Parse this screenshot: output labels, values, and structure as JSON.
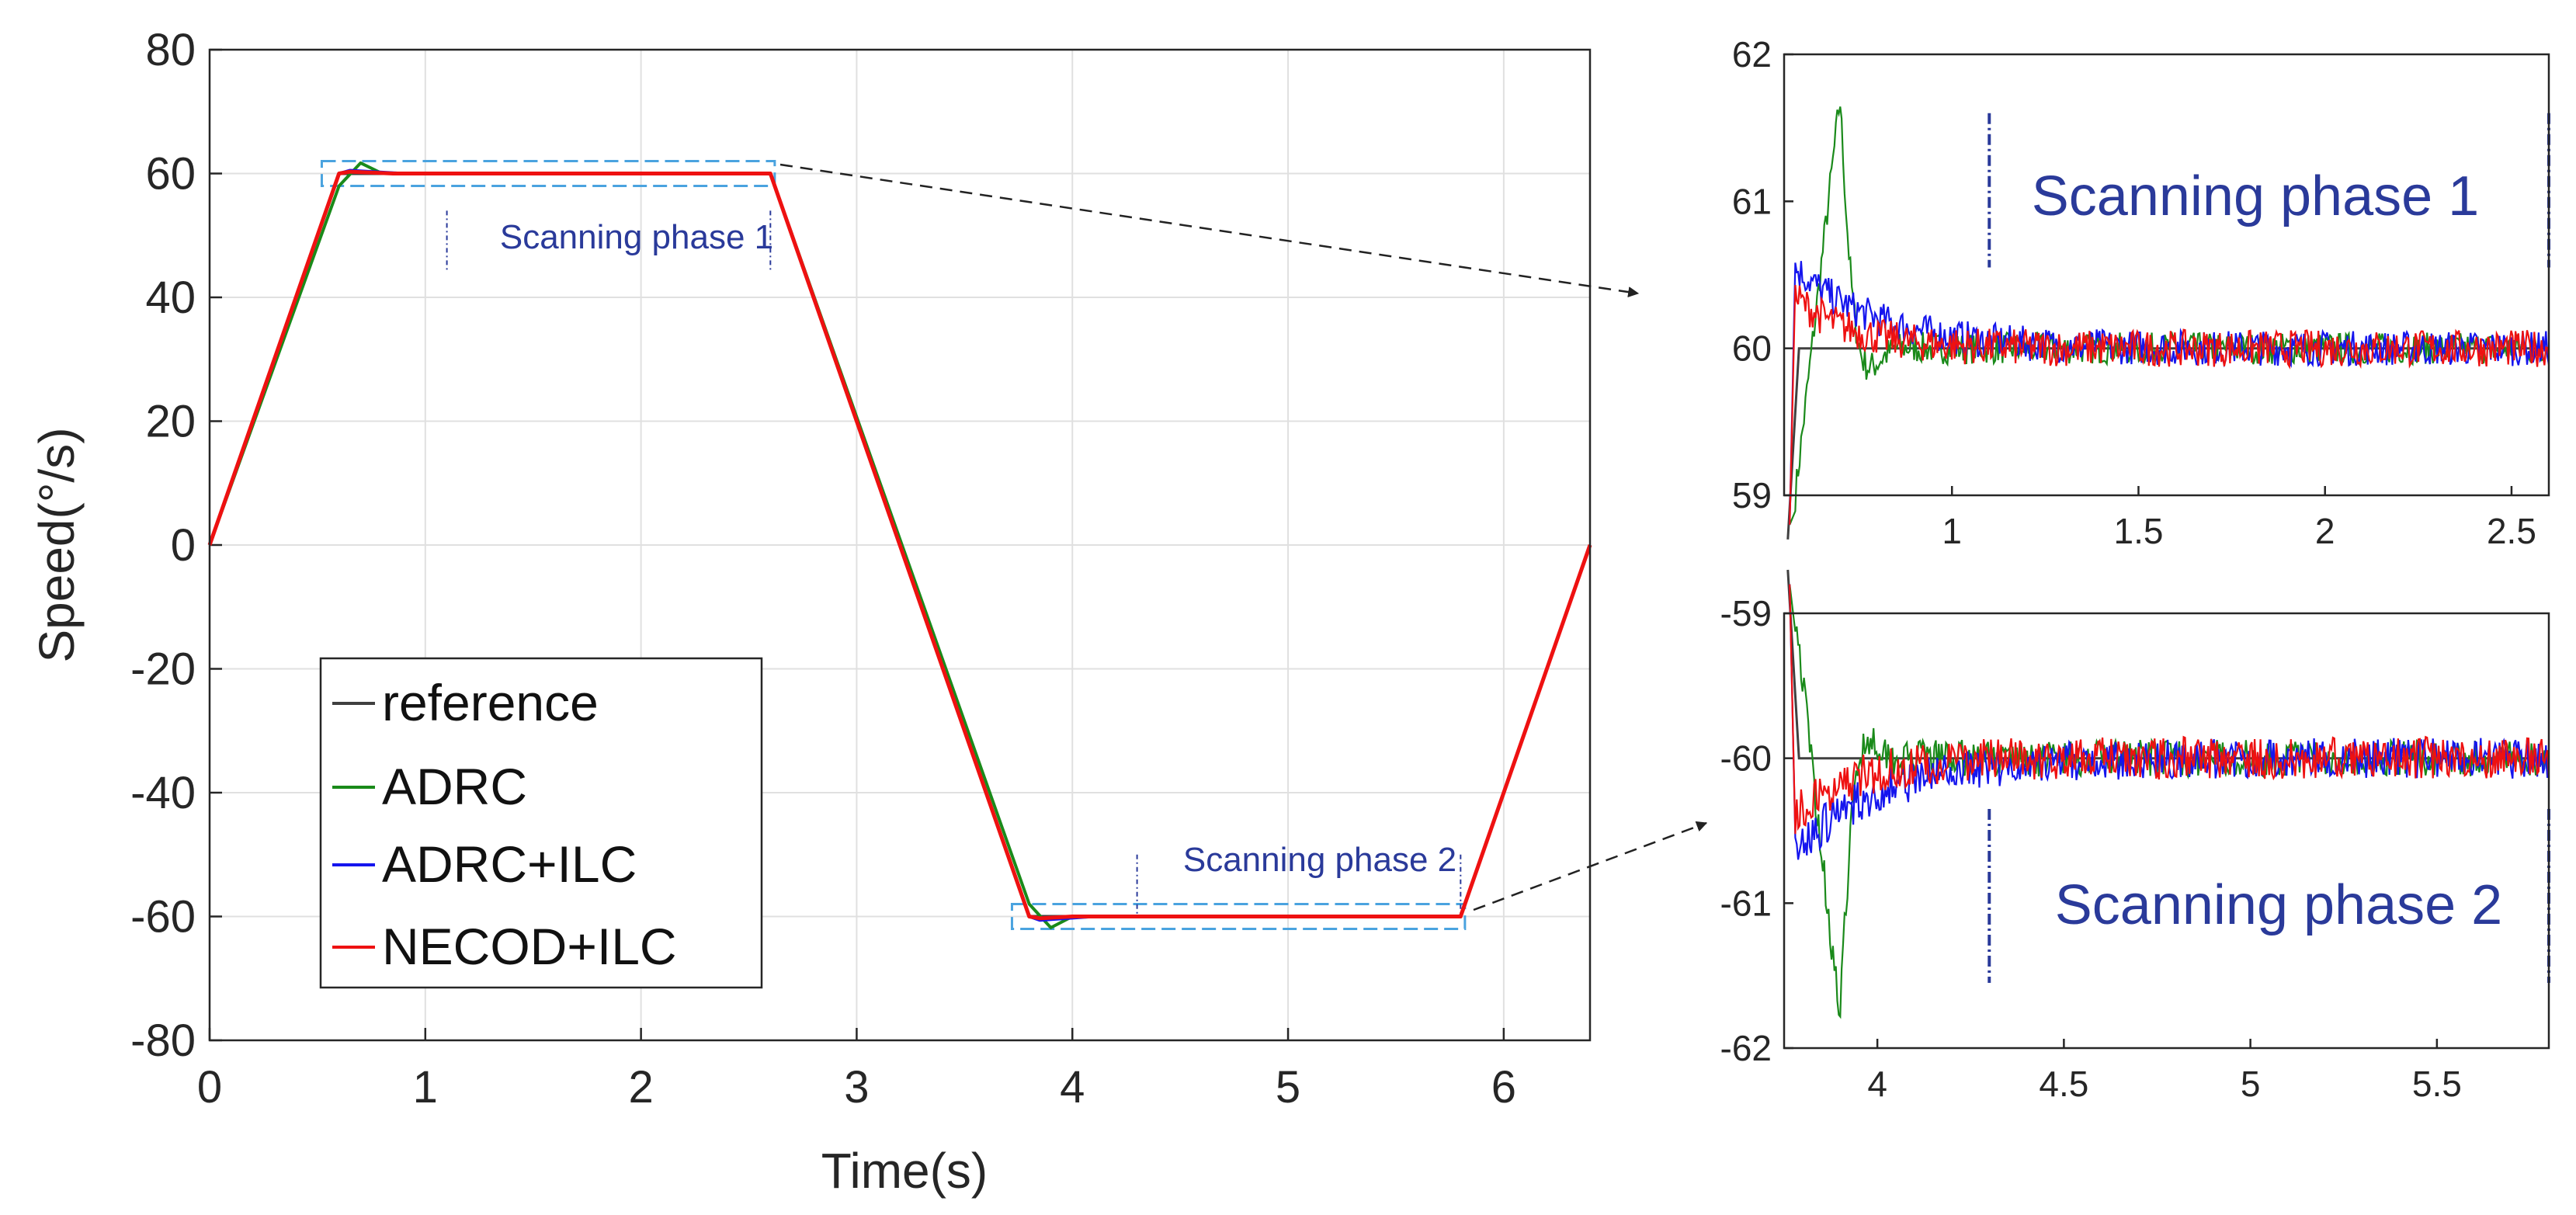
{
  "chart_data": [
    {
      "id": "main",
      "type": "line",
      "title": "",
      "xlabel": "Time(s)",
      "ylabel": "Speed(°/s)",
      "xlim": [
        0,
        6.4
      ],
      "ylim": [
        -80,
        80
      ],
      "xticks": [
        0,
        1,
        2,
        3,
        4,
        5,
        6
      ],
      "xtick_labels": [
        "0",
        "1",
        "2",
        "3",
        "4",
        "5",
        "6"
      ],
      "yticks": [
        80,
        60,
        40,
        20,
        0,
        -20,
        -40,
        -60,
        -80
      ],
      "ytick_labels": [
        "80",
        "60",
        "40",
        "20",
        "0",
        "-20",
        "-40",
        "-60",
        "-80"
      ],
      "grid": true,
      "legend_position": "lower-left",
      "legend": [
        "reference",
        "ADRC",
        "ADRC+ILC",
        "NECOD+ILC"
      ],
      "series": [
        {
          "name": "reference",
          "color": "#404040",
          "x": [
            0,
            0.6,
            2.6,
            3.8,
            5.8,
            6.4
          ],
          "y": [
            0,
            60,
            60,
            -60,
            -60,
            0
          ]
        },
        {
          "name": "ADRC",
          "color": "#1a8a1a",
          "x": [
            0,
            0.6,
            0.7,
            0.8,
            2.6,
            3.8,
            3.9,
            4.0,
            5.8,
            6.4
          ],
          "y": [
            0,
            58,
            61.7,
            60,
            60,
            -58,
            -61.8,
            -60,
            -60,
            0
          ]
        },
        {
          "name": "ADRC+ILC",
          "color": "#1515ee",
          "x": [
            0,
            0.6,
            0.65,
            0.9,
            2.6,
            3.8,
            3.85,
            4.1,
            5.8,
            6.4
          ],
          "y": [
            0,
            60,
            60.5,
            60,
            60,
            -60,
            -60.6,
            -60,
            -60,
            0
          ]
        },
        {
          "name": "NECOD+ILC",
          "color": "#ee1111",
          "x": [
            0,
            0.6,
            0.65,
            0.85,
            2.6,
            3.8,
            3.85,
            4.0,
            5.8,
            6.4
          ],
          "y": [
            0,
            60,
            60.3,
            60,
            60,
            -60,
            -60.3,
            -60,
            -60,
            0
          ]
        }
      ],
      "annotations": [
        {
          "text": "Scanning phase 1",
          "region_x": [
            0.52,
            2.62
          ],
          "region_y": [
            58,
            62
          ],
          "markers_x": [
            1.1,
            2.6
          ]
        },
        {
          "text": "Scanning phase 2",
          "region_x": [
            3.72,
            5.82
          ],
          "region_y": [
            -62,
            -58
          ],
          "markers_x": [
            4.3,
            5.8
          ]
        }
      ]
    },
    {
      "id": "zoom1",
      "type": "line",
      "title": "",
      "xlim": [
        0.55,
        2.6
      ],
      "ylim": [
        59,
        62
      ],
      "xticks": [
        1,
        1.5,
        2,
        2.5
      ],
      "xtick_labels": [
        "1",
        "1.5",
        "2",
        "2.5"
      ],
      "yticks": [
        62,
        61,
        60,
        59
      ],
      "ytick_labels": [
        "62",
        "61",
        "60",
        "59"
      ],
      "grid": false,
      "reference_level": 60,
      "adrc_peak": {
        "x": 0.7,
        "y": 61.7
      },
      "adrc_ilc_peak": {
        "x": 0.62,
        "y": 60.55
      },
      "necod_ilc_peak": {
        "x": 0.65,
        "y": 60.35
      },
      "noise_amplitude": 0.12,
      "annotation": "Scanning phase 1",
      "markers_x": [
        1.1,
        2.6
      ]
    },
    {
      "id": "zoom2",
      "type": "line",
      "title": "",
      "xlim": [
        3.75,
        5.8
      ],
      "ylim": [
        -62,
        -59
      ],
      "xticks": [
        4,
        4.5,
        5,
        5.5
      ],
      "xtick_labels": [
        "4",
        "4.5",
        "5",
        "5.5"
      ],
      "yticks": [
        -59,
        -60,
        -61,
        -62
      ],
      "ytick_labels": [
        "-59",
        "-60",
        "-61",
        "-62"
      ],
      "grid": false,
      "reference_level": -60,
      "adrc_peak": {
        "x": 3.9,
        "y": -61.8
      },
      "adrc_ilc_peak": {
        "x": 3.82,
        "y": -60.65
      },
      "necod_ilc_peak": {
        "x": 3.85,
        "y": -60.4
      },
      "noise_amplitude": 0.14,
      "annotation": "Scanning phase 2",
      "markers_x": [
        4.3,
        5.8
      ]
    }
  ]
}
